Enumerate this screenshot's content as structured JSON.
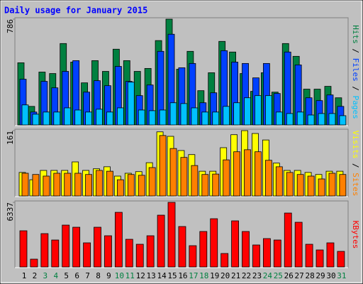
{
  "title": "Daily usage for January 2015",
  "chart_data": [
    {
      "type": "bar",
      "ylim": [
        0,
        786
      ],
      "yticks": [
        786
      ],
      "series": [
        {
          "name": "Hits",
          "color": "#008040",
          "values": [
            462,
            138,
            393,
            382,
            605,
            467,
            313,
            478,
            398,
            563,
            478,
            398,
            420,
            627,
            786,
            414,
            547,
            255,
            388,
            621,
            542,
            382,
            250,
            388,
            244,
            605,
            510,
            266,
            266,
            287,
            202
          ]
        },
        {
          "name": "Files",
          "color": "#0040ff",
          "values": [
            340,
            96,
            324,
            276,
            398,
            478,
            244,
            329,
            292,
            435,
            324,
            218,
            297,
            547,
            674,
            425,
            457,
            165,
            239,
            552,
            467,
            457,
            350,
            457,
            234,
            542,
            446,
            202,
            181,
            223,
            138
          ]
        },
        {
          "name": "Pages",
          "color": "#00c0ff",
          "values": [
            149,
            80,
            96,
            96,
            127,
            111,
            96,
            117,
            96,
            127,
            318,
            111,
            106,
            111,
            165,
            159,
            127,
            96,
            96,
            138,
            165,
            202,
            218,
            218,
            96,
            85,
            96,
            74,
            85,
            85,
            69
          ]
        }
      ]
    },
    {
      "type": "bar",
      "ylim": [
        0,
        161
      ],
      "yticks": [
        161
      ],
      "series": [
        {
          "name": "Visits",
          "color": "#ffff00",
          "values": [
            58,
            40,
            63,
            63,
            63,
            84,
            63,
            67,
            72,
            49,
            56,
            60,
            82,
            158,
            147,
            112,
            102,
            61,
            61,
            119,
            151,
            161,
            154,
            138,
            81,
            63,
            63,
            58,
            53,
            61,
            61
          ]
        },
        {
          "name": "Sites",
          "color": "#ff8000",
          "values": [
            56,
            53,
            49,
            56,
            56,
            56,
            53,
            63,
            61,
            40,
            53,
            51,
            70,
            149,
            117,
            95,
            75,
            53,
            54,
            89,
            109,
            114,
            109,
            88,
            72,
            58,
            53,
            49,
            42,
            56,
            53
          ]
        }
      ]
    },
    {
      "type": "bar",
      "ylim": [
        0,
        6337
      ],
      "yticks": [
        6337
      ],
      "categories": [
        "1",
        "2",
        "3",
        "4",
        "5",
        "6",
        "7",
        "8",
        "9",
        "10",
        "11",
        "12",
        "13",
        "14",
        "15",
        "16",
        "17",
        "18",
        "19",
        "20",
        "21",
        "22",
        "23",
        "24",
        "25",
        "26",
        "27",
        "28",
        "29",
        "30",
        "31"
      ],
      "category_colors": [
        "#000000",
        "#000000",
        "#008040",
        "#008040",
        "#000000",
        "#000000",
        "#000000",
        "#000000",
        "#000000",
        "#008040",
        "#008040",
        "#000000",
        "#000000",
        "#000000",
        "#000000",
        "#000000",
        "#008040",
        "#008040",
        "#000000",
        "#000000",
        "#000000",
        "#000000",
        "#000000",
        "#008040",
        "#008040",
        "#000000",
        "#000000",
        "#000000",
        "#000000",
        "#000000",
        "#008040"
      ],
      "series": [
        {
          "name": "KBytes",
          "color": "#ff0000",
          "values": [
            3550,
            766,
            3271,
            2645,
            4106,
            3898,
            2366,
            3898,
            3062,
            5359,
            2714,
            2227,
            3062,
            5081,
            6337,
            3967,
            2088,
            3480,
            4733,
            1322,
            4524,
            3480,
            2158,
            2784,
            2645,
            5290,
            4385,
            2227,
            1670,
            2366,
            1531
          ]
        }
      ]
    }
  ]
}
